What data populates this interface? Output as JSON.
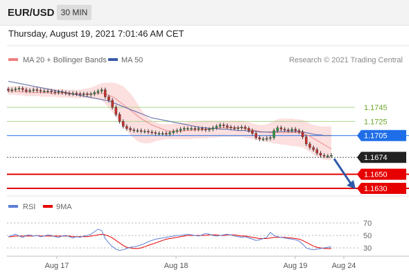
{
  "header": {
    "symbol": "EUR/USD",
    "timeframe": "30 MIN"
  },
  "datetime": "Thursday, August 19, 2021 7:01:46 AM CET",
  "chart_data": [
    {
      "type": "line",
      "legend": [
        {
          "name": "MA 20 + Bollinger Bands",
          "color": "#f08080"
        },
        {
          "name": "MA 50",
          "color": "#3a5aa8"
        }
      ],
      "copyright": "Research © 2021 Trading Central",
      "levels": [
        {
          "value": 1.1745,
          "label": "1.1745",
          "kind": "resistance",
          "color": "#6aa626"
        },
        {
          "value": 1.1725,
          "label": "1.1725",
          "kind": "resistance",
          "color": "#6aa626"
        },
        {
          "value": 1.1705,
          "label": "1.1705",
          "kind": "pivot",
          "color": "#1f6ee8"
        },
        {
          "value": 1.1674,
          "label": "1.1674",
          "kind": "last",
          "color": "#222222"
        },
        {
          "value": 1.165,
          "label": "1.1650",
          "kind": "support",
          "color": "#e60000"
        },
        {
          "value": 1.163,
          "label": "1.1630",
          "kind": "support",
          "color": "#e60000"
        }
      ],
      "x_labels": [
        "Aug 17",
        "Aug 18",
        "Aug 19",
        "Aug 24"
      ],
      "price_series": [
        1.1769,
        1.177,
        1.1771,
        1.1772,
        1.177,
        1.1768,
        1.1769,
        1.177,
        1.1769,
        1.1768,
        1.1768,
        1.1768,
        1.1767,
        1.1766,
        1.1767,
        1.1766,
        1.1765,
        1.1764,
        1.1765,
        1.1764,
        1.1763,
        1.1764,
        1.1763,
        1.1764,
        1.1766,
        1.1768,
        1.177,
        1.176,
        1.1755,
        1.1745,
        1.1735,
        1.1725,
        1.1718,
        1.1715,
        1.1713,
        1.1712,
        1.1712,
        1.1711,
        1.1711,
        1.171,
        1.1709,
        1.1708,
        1.1708,
        1.1708,
        1.1707,
        1.1709,
        1.1711,
        1.1712,
        1.1714,
        1.1715,
        1.1715,
        1.1715,
        1.1714,
        1.1715,
        1.1714,
        1.1713,
        1.1714,
        1.1716,
        1.1718,
        1.172,
        1.1719,
        1.1717,
        1.1716,
        1.1715,
        1.1716,
        1.1717,
        1.1715,
        1.1712,
        1.1708,
        1.1702,
        1.17,
        1.17,
        1.1701,
        1.1702,
        1.1712,
        1.1716,
        1.1714,
        1.1713,
        1.1712,
        1.1714,
        1.1712,
        1.171,
        1.1703,
        1.1693,
        1.1688,
        1.1685,
        1.168,
        1.1677,
        1.1676,
        1.1676,
        1.1677
      ],
      "ma50": [
        1.1782,
        1.1781,
        1.178,
        1.1779,
        1.1778,
        1.1777,
        1.1776,
        1.1775,
        1.1774,
        1.1773,
        1.1772,
        1.1771,
        1.177,
        1.1769,
        1.1768,
        1.1767,
        1.1766,
        1.1765,
        1.1764,
        1.1763,
        1.1762,
        1.1761,
        1.176,
        1.1759,
        1.1758,
        1.1757,
        1.1756,
        1.1755,
        1.1754,
        1.1752,
        1.175,
        1.1748,
        1.1746,
        1.1744,
        1.1742,
        1.174,
        1.1738,
        1.1736,
        1.1734,
        1.1732,
        1.173,
        1.1729,
        1.1728,
        1.1727,
        1.1726,
        1.1725,
        1.1724,
        1.1723,
        1.1722,
        1.1721,
        1.172,
        1.1719,
        1.1718,
        1.1717,
        1.1716,
        1.1716,
        1.1715,
        1.1715,
        1.1715,
        1.1714,
        1.1714,
        1.1714,
        1.1713,
        1.1713,
        1.1712,
        1.1712,
        1.1712,
        1.1711,
        1.1711,
        1.1711,
        1.171,
        1.171,
        1.171,
        1.171,
        1.171,
        1.1711,
        1.1711,
        1.1711,
        1.1711,
        1.1711,
        1.1711,
        1.1711,
        1.171,
        1.1709,
        1.1708,
        1.1707,
        1.1706,
        1.1706,
        1.1705,
        1.1705,
        1.1705
      ],
      "ma20": [
        1.1768,
        1.1768,
        1.1768,
        1.1767,
        1.1767,
        1.1767,
        1.1767,
        1.1766,
        1.1766,
        1.1766,
        1.1766,
        1.1766,
        1.1765,
        1.1765,
        1.1765,
        1.1765,
        1.1765,
        1.1764,
        1.1764,
        1.1764,
        1.1764,
        1.1764,
        1.1764,
        1.1764,
        1.1764,
        1.1765,
        1.1765,
        1.1764,
        1.1762,
        1.176,
        1.1757,
        1.1753,
        1.1749,
        1.1745,
        1.1741,
        1.1737,
        1.1733,
        1.1729,
        1.1726,
        1.1723,
        1.172,
        1.1718,
        1.1716,
        1.1714,
        1.1712,
        1.1711,
        1.1711,
        1.1711,
        1.1711,
        1.1712,
        1.1712,
        1.1712,
        1.1713,
        1.1713,
        1.1713,
        1.1714,
        1.1714,
        1.1715,
        1.1715,
        1.1716,
        1.1716,
        1.1716,
        1.1716,
        1.1716,
        1.1716,
        1.1716,
        1.1715,
        1.1714,
        1.1713,
        1.1712,
        1.1711,
        1.171,
        1.171,
        1.1709,
        1.1709,
        1.1709,
        1.1709,
        1.1709,
        1.1709,
        1.1709,
        1.1709,
        1.1709,
        1.1708,
        1.1706,
        1.1704,
        1.1701,
        1.1698,
        1.1695,
        1.1692,
        1.1689,
        1.1686
      ],
      "bb_upper": [
        1.1775,
        1.1775,
        1.1775,
        1.1775,
        1.1775,
        1.1775,
        1.1774,
        1.1774,
        1.1774,
        1.1773,
        1.1773,
        1.1772,
        1.1772,
        1.1771,
        1.1771,
        1.1771,
        1.177,
        1.177,
        1.177,
        1.177,
        1.177,
        1.1771,
        1.1772,
        1.1773,
        1.1775,
        1.1777,
        1.1779,
        1.178,
        1.178,
        1.178,
        1.1779,
        1.1777,
        1.1775,
        1.177,
        1.1765,
        1.1758,
        1.175,
        1.1742,
        1.1735,
        1.173,
        1.1726,
        1.1724,
        1.1722,
        1.1721,
        1.1721,
        1.1721,
        1.1722,
        1.1722,
        1.1723,
        1.1723,
        1.1724,
        1.1724,
        1.1725,
        1.1725,
        1.1726,
        1.1726,
        1.1726,
        1.1726,
        1.1726,
        1.1726,
        1.1726,
        1.1726,
        1.1726,
        1.1726,
        1.1726,
        1.1726,
        1.1725,
        1.1724,
        1.1722,
        1.1721,
        1.172,
        1.172,
        1.1721,
        1.1723,
        1.1726,
        1.1728,
        1.1729,
        1.1729,
        1.1729,
        1.1729,
        1.1728,
        1.1728,
        1.1727,
        1.1725,
        1.1722,
        1.172,
        1.1719,
        1.1718,
        1.1718,
        1.1718,
        1.1718
      ],
      "bb_lower": [
        1.1763,
        1.1763,
        1.1763,
        1.1762,
        1.1762,
        1.1761,
        1.1761,
        1.1761,
        1.1761,
        1.176,
        1.176,
        1.176,
        1.176,
        1.176,
        1.1759,
        1.1759,
        1.1759,
        1.1759,
        1.1758,
        1.1758,
        1.1758,
        1.1758,
        1.1758,
        1.1757,
        1.1757,
        1.1756,
        1.1755,
        1.175,
        1.1744,
        1.1738,
        1.1731,
        1.1725,
        1.1718,
        1.1712,
        1.1706,
        1.1701,
        1.1697,
        1.1695,
        1.1694,
        1.1694,
        1.1695,
        1.1697,
        1.1698,
        1.1699,
        1.17,
        1.17,
        1.17,
        1.17,
        1.17,
        1.17,
        1.17,
        1.17,
        1.1701,
        1.1701,
        1.1701,
        1.1701,
        1.1702,
        1.1702,
        1.1702,
        1.1703,
        1.1703,
        1.1703,
        1.1703,
        1.1703,
        1.1703,
        1.1703,
        1.1702,
        1.1701,
        1.17,
        1.1699,
        1.1698,
        1.1697,
        1.1696,
        1.1695,
        1.1694,
        1.1693,
        1.1692,
        1.1692,
        1.1691,
        1.169,
        1.169,
        1.1689,
        1.1688,
        1.1685,
        1.1682,
        1.1678,
        1.1675,
        1.1673,
        1.1671,
        1.167,
        1.167
      ],
      "projection": {
        "from": 1.1674,
        "to": 1.163
      }
    },
    {
      "type": "line",
      "legend": [
        {
          "name": "RSI",
          "color": "#5b7fd6"
        },
        {
          "name": "9MA",
          "color": "#e60000"
        }
      ],
      "y_ticks": [
        70,
        50,
        30
      ],
      "ylim": [
        20,
        80
      ],
      "rsi": [
        48,
        50,
        52,
        49,
        47,
        50,
        51,
        49,
        50,
        48,
        49,
        51,
        50,
        48,
        47,
        49,
        50,
        48,
        46,
        48,
        47,
        49,
        50,
        52,
        56,
        60,
        58,
        45,
        38,
        32,
        28,
        26,
        27,
        29,
        31,
        32,
        33,
        35,
        37,
        40,
        42,
        44,
        45,
        46,
        47,
        48,
        49,
        50,
        50,
        51,
        52,
        51,
        50,
        49,
        51,
        53,
        52,
        50,
        49,
        50,
        51,
        52,
        51,
        49,
        48,
        47,
        48,
        46,
        44,
        42,
        43,
        45,
        47,
        55,
        50,
        48,
        47,
        46,
        45,
        44,
        43,
        41,
        36,
        30,
        28,
        27,
        28,
        29,
        30,
        31,
        32
      ],
      "ma9": [
        48,
        48,
        49,
        49,
        49,
        49,
        49,
        49,
        50,
        49,
        49,
        49,
        49,
        49,
        49,
        49,
        49,
        49,
        48,
        48,
        48,
        48,
        48,
        49,
        50,
        51,
        52,
        51,
        49,
        46,
        42,
        38,
        34,
        31,
        30,
        29,
        29,
        30,
        32,
        34,
        36,
        38,
        40,
        42,
        44,
        45,
        46,
        47,
        48,
        49,
        50,
        50,
        50,
        50,
        50,
        50,
        51,
        51,
        51,
        50,
        50,
        51,
        51,
        51,
        50,
        49,
        49,
        48,
        47,
        46,
        45,
        45,
        45,
        46,
        47,
        47,
        47,
        47,
        46,
        46,
        45,
        44,
        42,
        39,
        36,
        33,
        31,
        30,
        29,
        29,
        29
      ]
    }
  ]
}
